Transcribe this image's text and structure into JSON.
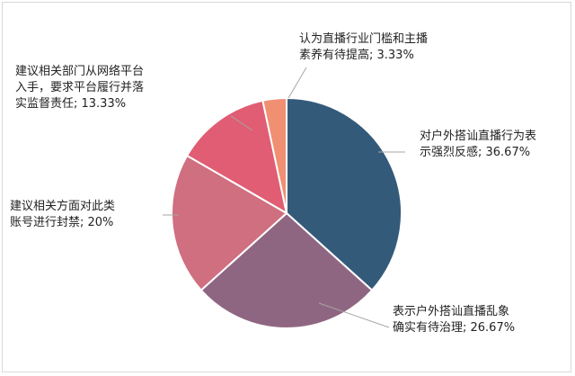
{
  "chart_data": {
    "type": "pie",
    "title": "",
    "start_angle_deg": 0,
    "direction": "clockwise",
    "slices": [
      {
        "label": "对户外搭讪直播行为表示强烈反感",
        "value": 36.67,
        "label_lines": [
          "对户外搭讪直播行为表",
          "示强烈反感; 36.67%"
        ],
        "color": "#345a7a"
      },
      {
        "label": "表示户外搭讪直播乱象确实有待治理",
        "value": 26.67,
        "label_lines": [
          "表示户外搭讪直播乱象",
          "确实有待治理; 26.67%"
        ],
        "color": "#8f6682"
      },
      {
        "label": "建议相关方面对此类账号进行封禁",
        "value": 20,
        "label_lines": [
          "建议相关方面对此类",
          "账号进行封禁; 20%"
        ],
        "color": "#cf6f7f"
      },
      {
        "label": "建议相关部门从网络平台入手，要求平台履行并落实监督责任",
        "value": 13.33,
        "label_lines": [
          "建议相关部门从网络平台",
          "入手，要求平台履行并落",
          "实监督责任; 13.33%"
        ],
        "color": "#e05d73"
      },
      {
        "label": "认为直播行业门槛和主播素养有待提高",
        "value": 3.33,
        "label_lines": [
          "认为直播行业门槛和主播",
          "素养有待提高; 3.33%"
        ],
        "color": "#f08f72"
      }
    ]
  }
}
